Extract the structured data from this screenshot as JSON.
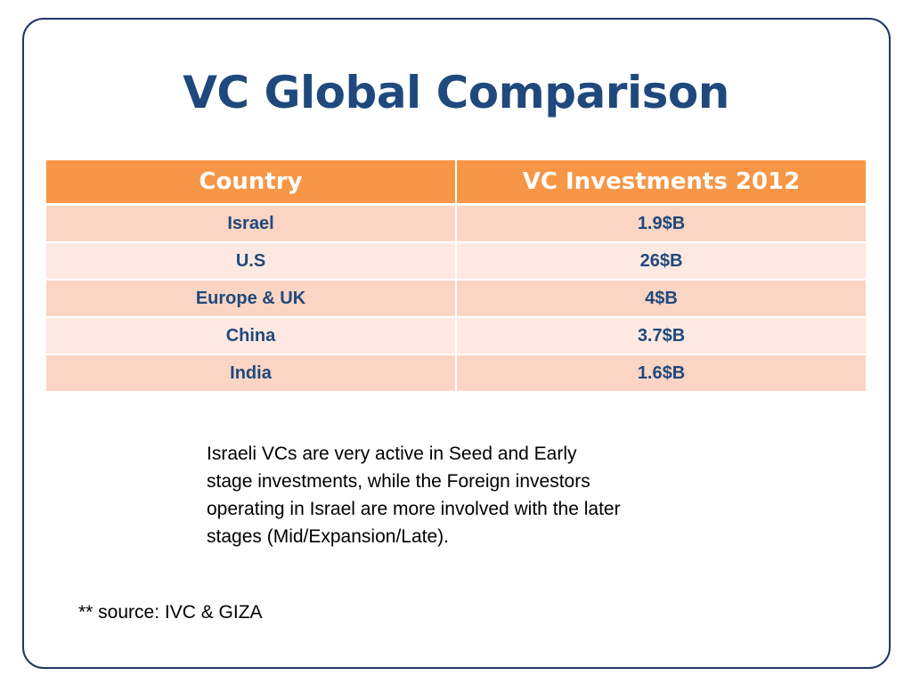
{
  "slide": {
    "title": "VC Global Comparison",
    "table": {
      "headers": [
        "Country",
        "VC Investments 2012"
      ],
      "rows": [
        {
          "country": "Israel",
          "investment": "1.9$B"
        },
        {
          "country": "U.S",
          "investment": "26$B"
        },
        {
          "country": "Europe & UK",
          "investment": "4$B"
        },
        {
          "country": "China",
          "investment": "3.7$B"
        },
        {
          "country": "India",
          "investment": "1.6$B"
        }
      ]
    },
    "note": "Israeli VCs are very active in Seed and Early stage investments, while the Foreign investors operating in Israel are more involved with the later stages (Mid/Expansion/Late).",
    "source": "** source: IVC & GIZA"
  },
  "colors": {
    "title": "#1f497d",
    "border": "#1f3864",
    "header_fill": "#f79646",
    "row_odd": "#fbd5c3",
    "row_even": "#fde9e1"
  }
}
